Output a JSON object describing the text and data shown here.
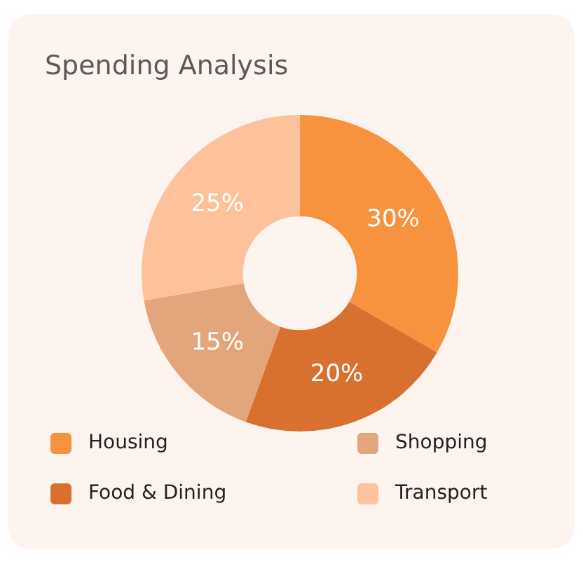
{
  "chart_data": {
    "type": "donut",
    "title": "Spending Analysis",
    "categories": [
      "Housing",
      "Food & Dining",
      "Shopping",
      "Transport"
    ],
    "values": [
      30,
      20,
      15,
      25
    ],
    "value_labels": [
      "30%",
      "20%",
      "15%",
      "25%"
    ],
    "colors": [
      "#f7923e",
      "#d8702f",
      "#e2a57c",
      "#fdc19b"
    ],
    "legend": "bottom"
  }
}
